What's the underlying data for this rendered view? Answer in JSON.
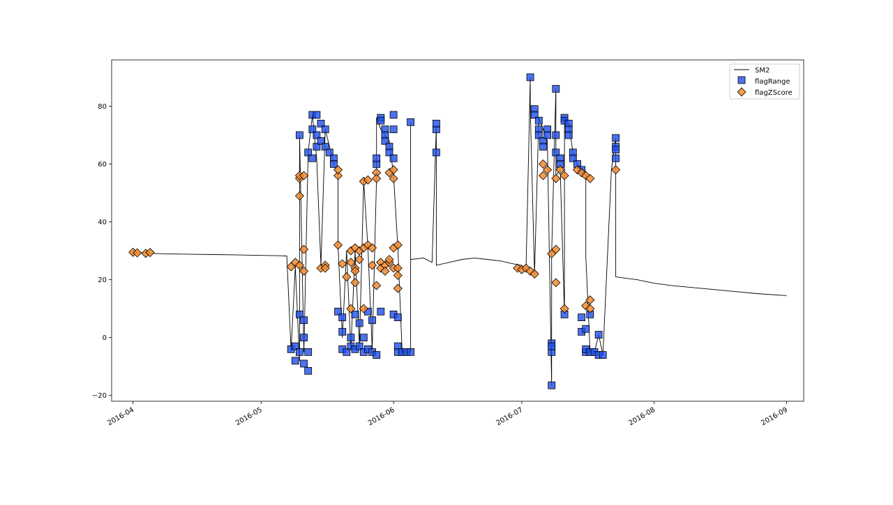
{
  "chart_data": {
    "type": "line",
    "title": "",
    "xlabel": "",
    "ylabel": "",
    "x_axis_type": "date",
    "xlim": [
      "2016-03-27",
      "2016-09-05"
    ],
    "ylim": [
      -22,
      96
    ],
    "grid": false,
    "legend_placement": "top-right",
    "x_ticks": [
      "2016-04",
      "2016-05",
      "2016-06",
      "2016-07",
      "2016-08",
      "2016-09"
    ],
    "y_ticks": [
      -20,
      0,
      20,
      40,
      60,
      80
    ],
    "series": [
      {
        "name": "SM2",
        "kind": "line",
        "color": "#000000",
        "points": [
          [
            "2016-04-01",
            29.5
          ],
          [
            "2016-04-05",
            29.1
          ],
          [
            "2016-04-10",
            28.9
          ],
          [
            "2016-04-15",
            28.8
          ],
          [
            "2016-04-20",
            28.7
          ],
          [
            "2016-04-25",
            28.6
          ],
          [
            "2016-05-01",
            28.4
          ],
          [
            "2016-05-05",
            28.3
          ],
          [
            "2016-05-07",
            28.2
          ],
          [
            "2016-05-08",
            -4.5
          ],
          [
            "2016-05-09",
            24.5
          ],
          [
            "2016-05-10",
            -8
          ],
          [
            "2016-05-10",
            70
          ],
          [
            "2016-05-11",
            -5
          ],
          [
            "2016-05-12",
            64
          ],
          [
            "2016-05-13",
            77
          ],
          [
            "2016-05-14",
            62
          ],
          [
            "2016-05-15",
            25
          ],
          [
            "2016-05-16",
            72
          ],
          [
            "2016-05-17",
            66
          ],
          [
            "2016-05-18",
            60
          ],
          [
            "2016-05-19",
            56
          ],
          [
            "2016-05-19",
            32
          ],
          [
            "2016-05-20",
            0
          ],
          [
            "2016-05-21",
            30
          ],
          [
            "2016-05-22",
            -4
          ],
          [
            "2016-05-23",
            30
          ],
          [
            "2016-05-24",
            -3
          ],
          [
            "2016-05-25",
            54
          ],
          [
            "2016-05-26",
            31
          ],
          [
            "2016-05-27",
            -4
          ],
          [
            "2016-05-28",
            55
          ],
          [
            "2016-05-28",
            76
          ],
          [
            "2016-05-29",
            72
          ],
          [
            "2016-05-30",
            70
          ],
          [
            "2016-05-31",
            68
          ],
          [
            "2016-06-01",
            56
          ],
          [
            "2016-06-02",
            31
          ],
          [
            "2016-06-03",
            -5
          ],
          [
            "2016-06-05",
            -5
          ],
          [
            "2016-06-05",
            74.5
          ],
          [
            "2016-06-05",
            27
          ],
          [
            "2016-06-08",
            27.5
          ],
          [
            "2016-06-10",
            26
          ],
          [
            "2016-06-11",
            73
          ],
          [
            "2016-06-11",
            25
          ],
          [
            "2016-06-14",
            26
          ],
          [
            "2016-06-17",
            27
          ],
          [
            "2016-06-20",
            27.5
          ],
          [
            "2016-06-23",
            27
          ],
          [
            "2016-06-26",
            26.5
          ],
          [
            "2016-06-29",
            25.5
          ],
          [
            "2016-07-01",
            25
          ],
          [
            "2016-07-02",
            23.5
          ],
          [
            "2016-07-03",
            90
          ],
          [
            "2016-07-03",
            79
          ],
          [
            "2016-07-04",
            22
          ],
          [
            "2016-07-05",
            76
          ],
          [
            "2016-07-06",
            72
          ],
          [
            "2016-07-07",
            68
          ],
          [
            "2016-07-08",
            -16.5
          ],
          [
            "2016-07-08",
            29
          ],
          [
            "2016-07-09",
            86
          ],
          [
            "2016-07-09",
            56
          ],
          [
            "2016-07-10",
            58
          ],
          [
            "2016-07-11",
            8
          ],
          [
            "2016-07-11",
            76
          ],
          [
            "2016-07-12",
            74
          ],
          [
            "2016-07-13",
            64
          ],
          [
            "2016-07-14",
            60
          ],
          [
            "2016-07-15",
            58
          ],
          [
            "2016-07-16",
            56
          ],
          [
            "2016-07-16",
            28
          ],
          [
            "2016-07-17",
            -5
          ],
          [
            "2016-07-18",
            -5
          ],
          [
            "2016-07-19",
            1
          ],
          [
            "2016-07-20",
            -6
          ],
          [
            "2016-07-22",
            58
          ],
          [
            "2016-07-23",
            69
          ],
          [
            "2016-07-23",
            21
          ],
          [
            "2016-07-28",
            20
          ],
          [
            "2016-08-01",
            18.8
          ],
          [
            "2016-08-05",
            18
          ],
          [
            "2016-08-10",
            17.3
          ],
          [
            "2016-08-15",
            16.6
          ],
          [
            "2016-08-20",
            15.9
          ],
          [
            "2016-08-25",
            15.2
          ],
          [
            "2016-09-01",
            14.5
          ]
        ]
      },
      {
        "name": "flagRange",
        "kind": "scatter",
        "marker": "square",
        "color": "#1f4fe8",
        "points": [
          [
            "2016-05-08",
            -4
          ],
          [
            "2016-05-09",
            -8
          ],
          [
            "2016-05-09",
            -3
          ],
          [
            "2016-05-10",
            8
          ],
          [
            "2016-05-10",
            70
          ],
          [
            "2016-05-10",
            -5
          ],
          [
            "2016-05-11",
            6
          ],
          [
            "2016-05-11",
            -9
          ],
          [
            "2016-05-11",
            0
          ],
          [
            "2016-05-12",
            -11.5
          ],
          [
            "2016-05-12",
            64
          ],
          [
            "2016-05-12",
            -5
          ],
          [
            "2016-05-13",
            62
          ],
          [
            "2016-05-13",
            77
          ],
          [
            "2016-05-13",
            72
          ],
          [
            "2016-05-14",
            70
          ],
          [
            "2016-05-14",
            66
          ],
          [
            "2016-05-14",
            77
          ],
          [
            "2016-05-15",
            74
          ],
          [
            "2016-05-15",
            68
          ],
          [
            "2016-05-16",
            72
          ],
          [
            "2016-05-16",
            66
          ],
          [
            "2016-05-17",
            64
          ],
          [
            "2016-05-18",
            62
          ],
          [
            "2016-05-18",
            60
          ],
          [
            "2016-05-19",
            9
          ],
          [
            "2016-05-20",
            7
          ],
          [
            "2016-05-20",
            -4
          ],
          [
            "2016-05-20",
            2
          ],
          [
            "2016-05-21",
            -5
          ],
          [
            "2016-05-22",
            0
          ],
          [
            "2016-05-22",
            -3
          ],
          [
            "2016-05-23",
            8
          ],
          [
            "2016-05-23",
            -4
          ],
          [
            "2016-05-24",
            -3
          ],
          [
            "2016-05-24",
            5
          ],
          [
            "2016-05-25",
            -5
          ],
          [
            "2016-05-25",
            0
          ],
          [
            "2016-05-26",
            9
          ],
          [
            "2016-05-26",
            -4
          ],
          [
            "2016-05-27",
            6
          ],
          [
            "2016-05-27",
            -5
          ],
          [
            "2016-05-28",
            60
          ],
          [
            "2016-05-28",
            62
          ],
          [
            "2016-05-28",
            -6
          ],
          [
            "2016-05-29",
            76
          ],
          [
            "2016-05-29",
            9
          ],
          [
            "2016-05-29",
            75
          ],
          [
            "2016-05-30",
            72
          ],
          [
            "2016-05-30",
            70
          ],
          [
            "2016-05-30",
            68
          ],
          [
            "2016-05-31",
            66
          ],
          [
            "2016-05-31",
            64
          ],
          [
            "2016-06-01",
            77
          ],
          [
            "2016-06-01",
            72
          ],
          [
            "2016-06-01",
            62
          ],
          [
            "2016-06-01",
            8
          ],
          [
            "2016-06-02",
            7
          ],
          [
            "2016-06-02",
            -3
          ],
          [
            "2016-06-02",
            -5
          ],
          [
            "2016-06-03",
            -5
          ],
          [
            "2016-06-04",
            -5
          ],
          [
            "2016-06-05",
            -5
          ],
          [
            "2016-06-05",
            74.5
          ],
          [
            "2016-06-11",
            64
          ],
          [
            "2016-06-11",
            72
          ],
          [
            "2016-06-11",
            74
          ],
          [
            "2016-07-03",
            90
          ],
          [
            "2016-07-04",
            79
          ],
          [
            "2016-07-04",
            77
          ],
          [
            "2016-07-05",
            75
          ],
          [
            "2016-07-05",
            72
          ],
          [
            "2016-07-05",
            70
          ],
          [
            "2016-07-06",
            68
          ],
          [
            "2016-07-06",
            66
          ],
          [
            "2016-07-07",
            72
          ],
          [
            "2016-07-07",
            70
          ],
          [
            "2016-07-08",
            -16.5
          ],
          [
            "2016-07-08",
            -2
          ],
          [
            "2016-07-08",
            -5
          ],
          [
            "2016-07-08",
            -3
          ],
          [
            "2016-07-09",
            86
          ],
          [
            "2016-07-09",
            70
          ],
          [
            "2016-07-09",
            64
          ],
          [
            "2016-07-10",
            62
          ],
          [
            "2016-07-10",
            60
          ],
          [
            "2016-07-11",
            8
          ],
          [
            "2016-07-11",
            76
          ],
          [
            "2016-07-11",
            75
          ],
          [
            "2016-07-12",
            74
          ],
          [
            "2016-07-12",
            72
          ],
          [
            "2016-07-12",
            70
          ],
          [
            "2016-07-13",
            64
          ],
          [
            "2016-07-13",
            62
          ],
          [
            "2016-07-14",
            60
          ],
          [
            "2016-07-15",
            58
          ],
          [
            "2016-07-15",
            7
          ],
          [
            "2016-07-15",
            2
          ],
          [
            "2016-07-16",
            -5
          ],
          [
            "2016-07-16",
            3
          ],
          [
            "2016-07-16",
            -4
          ],
          [
            "2016-07-17",
            8
          ],
          [
            "2016-07-17",
            -5
          ],
          [
            "2016-07-18",
            -5
          ],
          [
            "2016-07-19",
            1
          ],
          [
            "2016-07-19",
            -6
          ],
          [
            "2016-07-20",
            -6
          ],
          [
            "2016-07-23",
            69
          ],
          [
            "2016-07-23",
            66
          ],
          [
            "2016-07-23",
            62
          ],
          [
            "2016-07-23",
            65
          ]
        ]
      },
      {
        "name": "flagZScore",
        "kind": "scatter",
        "marker": "diamond",
        "color": "#f28a2e",
        "points": [
          [
            "2016-04-01",
            29.5
          ],
          [
            "2016-04-02",
            29.3
          ],
          [
            "2016-04-04",
            29.1
          ],
          [
            "2016-04-05",
            29.4
          ],
          [
            "2016-05-08",
            24.5
          ],
          [
            "2016-05-09",
            26
          ],
          [
            "2016-05-10",
            55
          ],
          [
            "2016-05-10",
            49
          ],
          [
            "2016-05-10",
            56
          ],
          [
            "2016-05-10",
            25
          ],
          [
            "2016-05-11",
            30.5
          ],
          [
            "2016-05-11",
            23
          ],
          [
            "2016-05-11",
            56
          ],
          [
            "2016-05-15",
            24
          ],
          [
            "2016-05-16",
            25
          ],
          [
            "2016-05-16",
            24
          ],
          [
            "2016-05-19",
            56
          ],
          [
            "2016-05-19",
            58
          ],
          [
            "2016-05-19",
            32
          ],
          [
            "2016-05-20",
            25.5
          ],
          [
            "2016-05-21",
            21
          ],
          [
            "2016-05-22",
            30
          ],
          [
            "2016-05-22",
            26
          ],
          [
            "2016-05-22",
            10
          ],
          [
            "2016-05-23",
            31
          ],
          [
            "2016-05-23",
            24
          ],
          [
            "2016-05-23",
            19
          ],
          [
            "2016-05-23",
            23
          ],
          [
            "2016-05-24",
            27
          ],
          [
            "2016-05-24",
            30
          ],
          [
            "2016-05-25",
            54
          ],
          [
            "2016-05-25",
            31
          ],
          [
            "2016-05-25",
            10
          ],
          [
            "2016-05-26",
            54.5
          ],
          [
            "2016-05-26",
            32
          ],
          [
            "2016-05-27",
            31
          ],
          [
            "2016-05-27",
            25
          ],
          [
            "2016-05-28",
            57
          ],
          [
            "2016-05-28",
            55
          ],
          [
            "2016-05-28",
            18
          ],
          [
            "2016-05-29",
            26
          ],
          [
            "2016-05-29",
            24
          ],
          [
            "2016-05-30",
            25
          ],
          [
            "2016-05-30",
            23
          ],
          [
            "2016-05-31",
            57
          ],
          [
            "2016-05-31",
            26
          ],
          [
            "2016-05-31",
            27
          ],
          [
            "2016-06-01",
            55
          ],
          [
            "2016-06-01",
            58
          ],
          [
            "2016-06-01",
            31
          ],
          [
            "2016-06-01",
            24
          ],
          [
            "2016-06-02",
            32
          ],
          [
            "2016-06-02",
            24
          ],
          [
            "2016-06-02",
            21.5
          ],
          [
            "2016-06-02",
            17
          ],
          [
            "2016-06-30",
            24
          ],
          [
            "2016-07-01",
            23.5
          ],
          [
            "2016-07-02",
            24
          ],
          [
            "2016-07-03",
            23
          ],
          [
            "2016-07-04",
            22
          ],
          [
            "2016-07-06",
            60
          ],
          [
            "2016-07-06",
            56
          ],
          [
            "2016-07-07",
            58
          ],
          [
            "2016-07-08",
            29
          ],
          [
            "2016-07-09",
            30.5
          ],
          [
            "2016-07-09",
            55
          ],
          [
            "2016-07-09",
            19
          ],
          [
            "2016-07-10",
            58
          ],
          [
            "2016-07-11",
            56
          ],
          [
            "2016-07-11",
            10
          ],
          [
            "2016-07-14",
            58
          ],
          [
            "2016-07-15",
            57
          ],
          [
            "2016-07-16",
            56
          ],
          [
            "2016-07-16",
            11
          ],
          [
            "2016-07-17",
            13
          ],
          [
            "2016-07-17",
            10
          ],
          [
            "2016-07-17",
            55
          ],
          [
            "2016-07-23",
            58
          ]
        ]
      }
    ]
  }
}
